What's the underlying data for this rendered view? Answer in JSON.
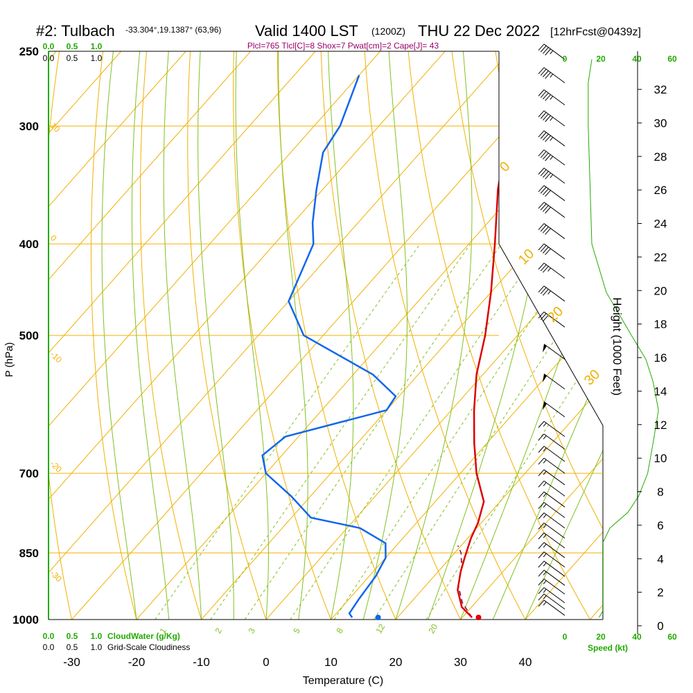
{
  "header": {
    "station": "#2: Tulbach",
    "coords": "-33.304°,19.1387° (63,96)",
    "valid": "Valid 1400 LST",
    "zulu": "(1200Z)",
    "date": "THU 22 Dec 2022",
    "forecast": "[12hrFcst@0439z]",
    "indices": "Plcl=765 Tlcl[C]=8 Shox=7 Pwat[cm]=2 Cape[J]= 43"
  },
  "colors": {
    "temperature": "#dd0000",
    "dewpoint": "#1166ee",
    "parcel": "#880044",
    "isotherm_isobar": "#f0b000",
    "adiabat": "#80c020",
    "accent_green": "#22aa00",
    "title_purple": "#990066"
  },
  "chart_data": {
    "type": "line",
    "title": "#2: Tulbach Valid 1400 LST (1200Z) THU 22 Dec 2022 [12hrFcst@0439z]",
    "xlabel": "Temperature (C)",
    "ylabel": "P (hPa)",
    "y2label": "Height (1000 Feet)",
    "x_ticks": [
      -30,
      -20,
      -10,
      0,
      10,
      20,
      30,
      40
    ],
    "y_ticks": [
      250,
      300,
      400,
      500,
      700,
      850,
      1000
    ],
    "ylim": [
      1000,
      250
    ],
    "y_scale": "log-pressure (skew-T)",
    "height_ticks": [
      0,
      2,
      4,
      6,
      8,
      10,
      12,
      14,
      16,
      18,
      20,
      22,
      24,
      26,
      28,
      30,
      32
    ],
    "isotherm_labels": [
      "-10",
      "0",
      "10",
      "20",
      "30"
    ],
    "isotherm_labels_left": [
      "10",
      "0",
      "-10",
      "-20",
      "-30"
    ],
    "mixing_ratio_labels": [
      "1",
      "2",
      "3",
      "5",
      "8",
      "12",
      "20"
    ],
    "series": [
      {
        "name": "Temperature",
        "points": [
          {
            "p": 995,
            "t": 31.5
          },
          {
            "p": 970,
            "t": 28.5
          },
          {
            "p": 930,
            "t": 25.5
          },
          {
            "p": 890,
            "t": 23.5
          },
          {
            "p": 860,
            "t": 22.2
          },
          {
            "p": 820,
            "t": 20.5
          },
          {
            "p": 790,
            "t": 19.5
          },
          {
            "p": 750,
            "t": 17.5
          },
          {
            "p": 700,
            "t": 12.5
          },
          {
            "p": 650,
            "t": 8.0
          },
          {
            "p": 600,
            "t": 3.5
          },
          {
            "p": 550,
            "t": -1.0
          },
          {
            "p": 500,
            "t": -5.0
          },
          {
            "p": 450,
            "t": -10.0
          },
          {
            "p": 400,
            "t": -16.0
          },
          {
            "p": 350,
            "t": -23.0
          },
          {
            "p": 300,
            "t": -30.0
          },
          {
            "p": 265,
            "t": -34.5
          }
        ]
      },
      {
        "name": "Dewpoint",
        "points": [
          {
            "p": 995,
            "t": 13.0
          },
          {
            "p": 985,
            "t": 12.0
          },
          {
            "p": 950,
            "t": 11.5
          },
          {
            "p": 900,
            "t": 11.0
          },
          {
            "p": 860,
            "t": 10.0
          },
          {
            "p": 830,
            "t": 8.0
          },
          {
            "p": 800,
            "t": 2.0
          },
          {
            "p": 780,
            "t": -7.0
          },
          {
            "p": 740,
            "t": -13.0
          },
          {
            "p": 700,
            "t": -20.0
          },
          {
            "p": 670,
            "t": -23.0
          },
          {
            "p": 640,
            "t": -22.0
          },
          {
            "p": 600,
            "t": -10.0
          },
          {
            "p": 580,
            "t": -10.5
          },
          {
            "p": 550,
            "t": -17.0
          },
          {
            "p": 500,
            "t": -33.0
          },
          {
            "p": 460,
            "t": -40.0
          },
          {
            "p": 400,
            "t": -44.0
          },
          {
            "p": 380,
            "t": -47.0
          },
          {
            "p": 350,
            "t": -51.0
          },
          {
            "p": 320,
            "t": -55.0
          },
          {
            "p": 300,
            "t": -56.0
          },
          {
            "p": 265,
            "t": -60.0
          }
        ]
      },
      {
        "name": "Parcel",
        "points": [
          {
            "p": 995,
            "t": 31.5
          },
          {
            "p": 960,
            "t": 28.0
          },
          {
            "p": 920,
            "t": 25.0
          },
          {
            "p": 880,
            "t": 23.0
          },
          {
            "p": 850,
            "t": 21.0
          },
          {
            "p": 835,
            "t": 19.5
          }
        ]
      }
    ],
    "surface_markers": [
      {
        "name": "Temperature",
        "p": 995,
        "t": 32.5
      },
      {
        "name": "Dewpoint",
        "p": 995,
        "t": 17.0
      }
    ],
    "wind_barbs": [
      {
        "p": 255,
        "speed_kt": 45
      },
      {
        "p": 270,
        "speed_kt": 45
      },
      {
        "p": 285,
        "speed_kt": 45
      },
      {
        "p": 300,
        "speed_kt": 45
      },
      {
        "p": 315,
        "speed_kt": 45
      },
      {
        "p": 330,
        "speed_kt": 45
      },
      {
        "p": 345,
        "speed_kt": 45
      },
      {
        "p": 360,
        "speed_kt": 40
      },
      {
        "p": 375,
        "speed_kt": 40
      },
      {
        "p": 395,
        "speed_kt": 40
      },
      {
        "p": 415,
        "speed_kt": 40
      },
      {
        "p": 435,
        "speed_kt": 35
      },
      {
        "p": 460,
        "speed_kt": 35
      },
      {
        "p": 490,
        "speed_kt": 30
      },
      {
        "p": 530,
        "speed_kt": 50
      },
      {
        "p": 570,
        "speed_kt": 50
      },
      {
        "p": 610,
        "speed_kt": 50
      },
      {
        "p": 640,
        "speed_kt": 15
      },
      {
        "p": 660,
        "speed_kt": 15
      },
      {
        "p": 680,
        "speed_kt": 15
      },
      {
        "p": 700,
        "speed_kt": 15
      },
      {
        "p": 720,
        "speed_kt": 15
      },
      {
        "p": 740,
        "speed_kt": 15
      },
      {
        "p": 760,
        "speed_kt": 15
      },
      {
        "p": 780,
        "speed_kt": 15
      },
      {
        "p": 800,
        "speed_kt": 15
      },
      {
        "p": 820,
        "speed_kt": 15
      },
      {
        "p": 840,
        "speed_kt": 15
      },
      {
        "p": 860,
        "speed_kt": 15
      },
      {
        "p": 880,
        "speed_kt": 15
      },
      {
        "p": 900,
        "speed_kt": 15
      },
      {
        "p": 920,
        "speed_kt": 15
      },
      {
        "p": 940,
        "speed_kt": 15
      },
      {
        "p": 960,
        "speed_kt": 15
      },
      {
        "p": 975,
        "speed_kt": 15
      },
      {
        "p": 990,
        "speed_kt": 15
      }
    ],
    "wind_speed_profile": [
      {
        "p": 995,
        "speed_kt": 6
      },
      {
        "p": 980,
        "speed_kt": 8
      },
      {
        "p": 950,
        "speed_kt": 8
      },
      {
        "p": 900,
        "speed_kt": 8
      },
      {
        "p": 860,
        "speed_kt": 8
      },
      {
        "p": 830,
        "speed_kt": 8
      },
      {
        "p": 800,
        "speed_kt": 12
      },
      {
        "p": 770,
        "speed_kt": 22
      },
      {
        "p": 740,
        "speed_kt": 28
      },
      {
        "p": 700,
        "speed_kt": 33
      },
      {
        "p": 650,
        "speed_kt": 36
      },
      {
        "p": 600,
        "speed_kt": 39
      },
      {
        "p": 560,
        "speed_kt": 36
      },
      {
        "p": 530,
        "speed_kt": 32
      },
      {
        "p": 500,
        "speed_kt": 24
      },
      {
        "p": 450,
        "speed_kt": 10
      },
      {
        "p": 400,
        "speed_kt": 2
      },
      {
        "p": 300,
        "speed_kt": 0
      },
      {
        "p": 270,
        "speed_kt": 0
      },
      {
        "p": 255,
        "speed_kt": 2
      }
    ],
    "speed_axis": {
      "label": "Speed (kt)",
      "ticks": [
        0,
        20,
        40,
        60
      ],
      "xlim": [
        0,
        60
      ]
    },
    "cloud_water_label": "CloudWater (g/Kg)",
    "cloudiness_label": "Grid-Scale Cloudiness",
    "cloud_axis_ticks": [
      "0.0",
      "0.5",
      "1.0"
    ],
    "legend": "none",
    "grid": true
  }
}
